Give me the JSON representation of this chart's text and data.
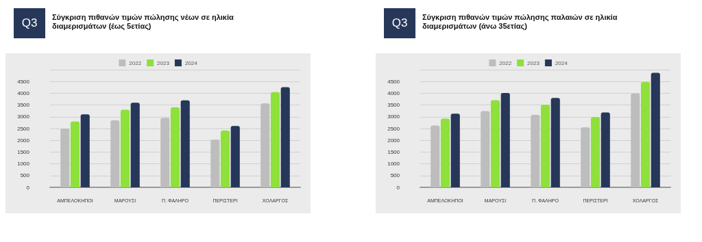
{
  "chart_data": [
    {
      "type": "bar",
      "title": "Σύγκριση πιθανών τιμών πώλησης νέων σε ηλικία διαμερισμάτων (έως 5ετίας)",
      "annotations": [
        "Q3"
      ],
      "categories": [
        "ΑΜΠΕΛΟΚΗΠΟΙ",
        "ΜΑΡΟΥΣΙ",
        "Π. ΦΑΛΗΡΟ",
        "ΠΕΡΙΣΤΕΡΙ",
        "ΧΟΛΑΡΓΟΣ"
      ],
      "series": [
        {
          "name": "2022",
          "color": "#bdbdbd",
          "values": [
            2500,
            2850,
            2950,
            2030,
            3570
          ]
        },
        {
          "name": "2023",
          "color": "#8ee03a",
          "values": [
            2800,
            3300,
            3400,
            2410,
            4050
          ]
        },
        {
          "name": "2024",
          "color": "#263759",
          "values": [
            3100,
            3600,
            3700,
            2610,
            4260
          ]
        }
      ],
      "ylim": [
        0,
        5000
      ],
      "yticks": [
        0,
        500,
        1000,
        1500,
        2000,
        2500,
        3000,
        3500,
        4000,
        4500,
        {
          "value": 5000,
          "label": null
        }
      ],
      "grid": "y",
      "legend": "top"
    },
    {
      "type": "bar",
      "title": "Σύγκριση πιθανών τιμών πώλησης παλαιών σε ηλικία διαμερισμάτων (άνω 35ετίας)",
      "annotations": [
        "Q3"
      ],
      "categories": [
        "ΑΜΠΕΛΟΚΗΠΟΙ",
        "ΜΑΡΟΥΣΙ",
        "Π. ΦΑΛΗΡΟ",
        "ΠΕΡΙΣΤΕΡΙ",
        "ΧΟΛΑΡΓΟΣ"
      ],
      "series": [
        {
          "name": "2022",
          "color": "#bdbdbd",
          "values": [
            2630,
            3240,
            3080,
            2550,
            3990
          ]
        },
        {
          "name": "2023",
          "color": "#8ee03a",
          "values": [
            2920,
            3710,
            3510,
            2990,
            4480
          ]
        },
        {
          "name": "2024",
          "color": "#263759",
          "values": [
            3130,
            4010,
            3800,
            3180,
            4870
          ]
        }
      ],
      "ylim": [
        0,
        5000
      ],
      "yticks": [
        0,
        500,
        1000,
        1500,
        2000,
        2500,
        3000,
        3500,
        4000,
        4500,
        {
          "value": 5000,
          "label": null
        }
      ],
      "grid": "y",
      "legend": "top"
    }
  ]
}
